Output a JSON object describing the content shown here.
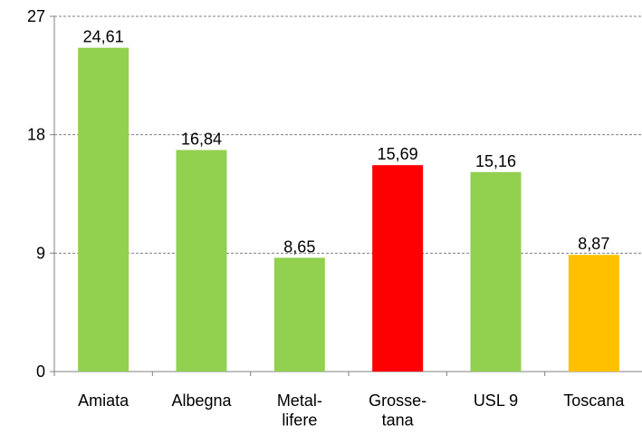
{
  "chart_data": {
    "type": "bar",
    "categories": [
      "Amiata",
      "Albegna",
      "Metal-\nlifere",
      "Grosse-\ntana",
      "USL 9",
      "Toscana"
    ],
    "values": [
      24.61,
      16.84,
      8.65,
      15.69,
      15.16,
      8.87
    ],
    "value_labels": [
      "24,61",
      "16,84",
      "8,65",
      "15,69",
      "15,16",
      "8,87"
    ],
    "colors": [
      "#92d050",
      "#92d050",
      "#92d050",
      "#ff0000",
      "#92d050",
      "#ffc000"
    ],
    "ylim": [
      0,
      27
    ],
    "yticks": [
      0,
      9,
      18,
      27
    ],
    "grid": true
  }
}
